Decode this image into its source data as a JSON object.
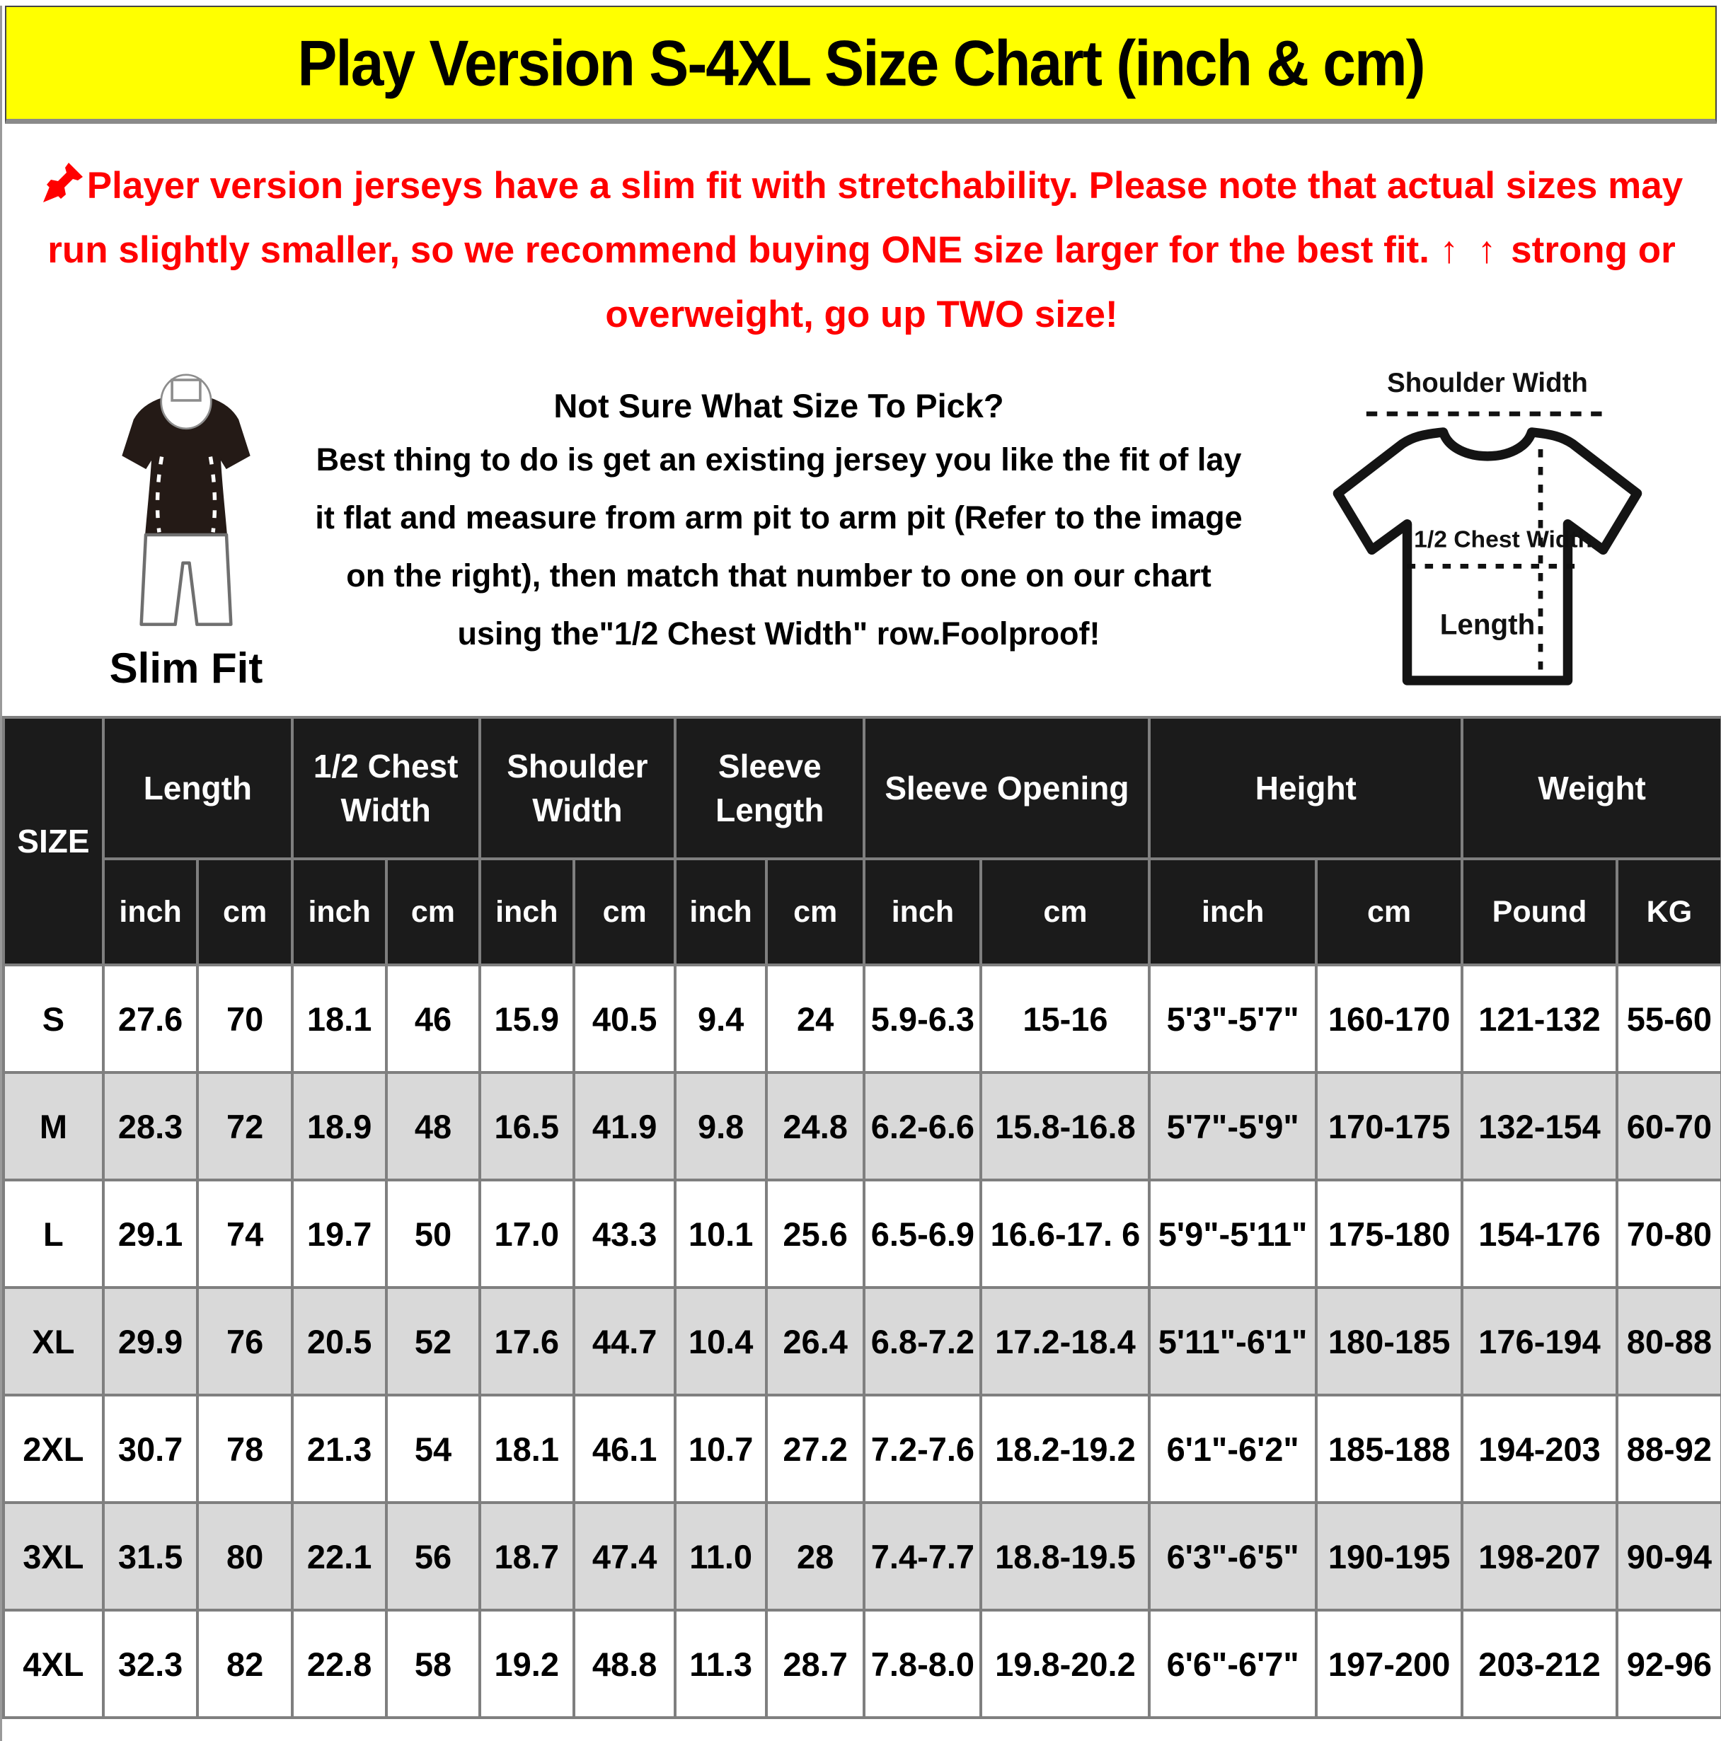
{
  "banner": {
    "title": "Play Version S-4XL Size Chart (inch & cm)",
    "bg_color": "#FFFF00",
    "text_color": "#000000"
  },
  "notice": {
    "pin_icon": "pushpin-icon",
    "text_before_arrows": "Player version jerseys have a slim fit with stretchability. Please note that actual sizes may run slightly smaller, so we recommend buying ONE size larger for the best fit. ",
    "arrows": "↑ ↑",
    "text_after_arrows": " strong or overweight, go up TWO size!",
    "color": "#FF0000"
  },
  "fit_figure": {
    "label": "Slim Fit"
  },
  "size_help": {
    "heading": "Not Sure What Size To Pick?",
    "body": "Best thing to do is get an existing jersey you like the fit of lay it flat and measure from arm pit to arm pit (Refer to the image on the right), then match that number to one on our chart using the\"1/2 Chest Width\" row.Foolproof!"
  },
  "shirt_diagram": {
    "shoulder_label": "Shoulder Width",
    "chest_label": "1/2 Chest Width",
    "length_label": "Length"
  },
  "size_table": {
    "size_header": "SIZE",
    "column_groups": [
      {
        "label": "Length",
        "subs": [
          "inch",
          "cm"
        ]
      },
      {
        "label": "1/2 Chest Width",
        "subs": [
          "inch",
          "cm"
        ]
      },
      {
        "label": "Shoulder Width",
        "subs": [
          "inch",
          "cm"
        ]
      },
      {
        "label": "Sleeve Length",
        "subs": [
          "inch",
          "cm"
        ]
      },
      {
        "label": "Sleeve Opening",
        "subs": [
          "inch",
          "cm"
        ]
      },
      {
        "label": "Height",
        "subs": [
          "inch",
          "cm"
        ]
      },
      {
        "label": "Weight",
        "subs": [
          "Pound",
          "KG"
        ]
      }
    ],
    "rows": [
      {
        "size": "S",
        "values": [
          "27.6",
          "70",
          "18.1",
          "46",
          "15.9",
          "40.5",
          "9.4",
          "24",
          "5.9-6.3",
          "15-16",
          "5'3\"-5'7\"",
          "160-170",
          "121-132",
          "55-60"
        ]
      },
      {
        "size": "M",
        "values": [
          "28.3",
          "72",
          "18.9",
          "48",
          "16.5",
          "41.9",
          "9.8",
          "24.8",
          "6.2-6.6",
          "15.8-16.8",
          "5'7\"-5'9\"",
          "170-175",
          "132-154",
          "60-70"
        ]
      },
      {
        "size": "L",
        "values": [
          "29.1",
          "74",
          "19.7",
          "50",
          "17.0",
          "43.3",
          "10.1",
          "25.6",
          "6.5-6.9",
          "16.6-17. 6",
          "5'9\"-5'11\"",
          "175-180",
          "154-176",
          "70-80"
        ]
      },
      {
        "size": "XL",
        "values": [
          "29.9",
          "76",
          "20.5",
          "52",
          "17.6",
          "44.7",
          "10.4",
          "26.4",
          "6.8-7.2",
          "17.2-18.4",
          "5'11\"-6'1\"",
          "180-185",
          "176-194",
          "80-88"
        ]
      },
      {
        "size": "2XL",
        "values": [
          "30.7",
          "78",
          "21.3",
          "54",
          "18.1",
          "46.1",
          "10.7",
          "27.2",
          "7.2-7.6",
          "18.2-19.2",
          "6'1\"-6'2\"",
          "185-188",
          "194-203",
          "88-92"
        ]
      },
      {
        "size": "3XL",
        "values": [
          "31.5",
          "80",
          "22.1",
          "56",
          "18.7",
          "47.4",
          "11.0",
          "28",
          "7.4-7.7",
          "18.8-19.5",
          "6'3\"-6'5\"",
          "190-195",
          "198-207",
          "90-94"
        ]
      },
      {
        "size": "4XL",
        "values": [
          "32.3",
          "82",
          "22.8",
          "58",
          "19.2",
          "48.8",
          "11.3",
          "28.7",
          "7.8-8.0",
          "19.8-20.2",
          "6'6\"-6'7\"",
          "197-200",
          "203-212",
          "92-96"
        ]
      }
    ],
    "colors": {
      "header_bg": "#1b1b1b",
      "header_text": "#ffffff",
      "row_alt_bg": "#d9d9d9",
      "border": "#7f7f7f"
    }
  }
}
